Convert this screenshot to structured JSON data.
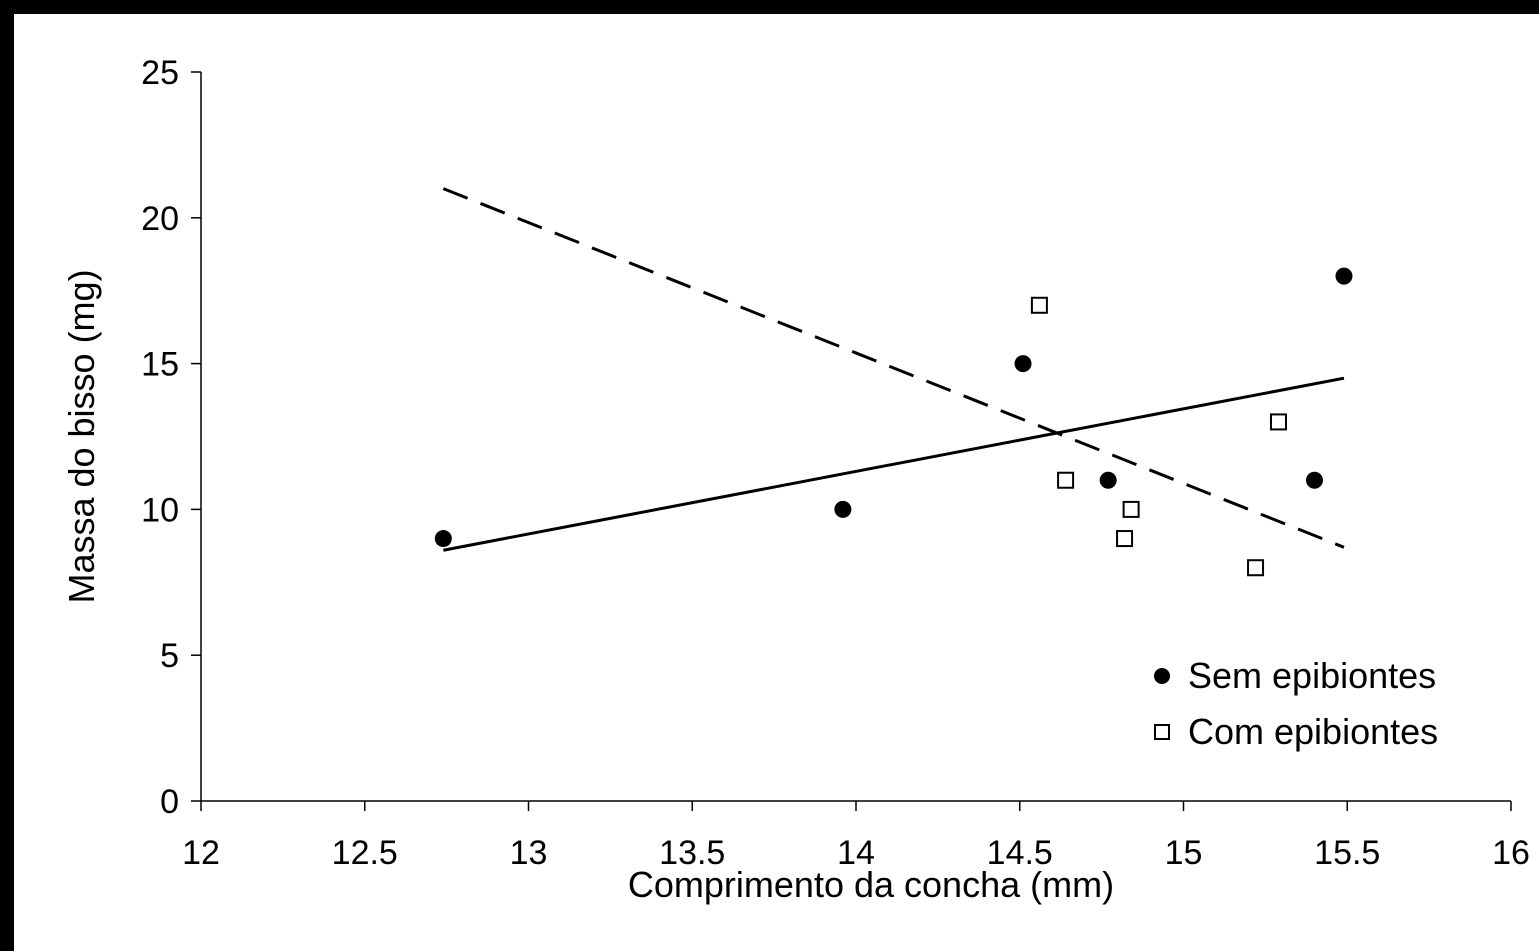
{
  "chart_data": {
    "type": "scatter",
    "title": "",
    "xlabel": "Comprimento da concha (mm)",
    "ylabel": "Massa do bisso (mg)",
    "xlim": [
      12,
      16
    ],
    "ylim": [
      0,
      25
    ],
    "xticks": [
      "12",
      "12.5",
      "13",
      "13.5",
      "14",
      "14.5",
      "15",
      "15.5",
      "16"
    ],
    "yticks": [
      "0",
      "5",
      "10",
      "15",
      "20",
      "25"
    ],
    "grid": false,
    "legend_position": "bottom-right",
    "series": [
      {
        "name": "Sem epibiontes",
        "marker": "filled-circle",
        "color": "#000000",
        "points": [
          {
            "x": 12.74,
            "y": 9
          },
          {
            "x": 13.96,
            "y": 10
          },
          {
            "x": 14.51,
            "y": 15
          },
          {
            "x": 14.77,
            "y": 11
          },
          {
            "x": 15.4,
            "y": 11
          },
          {
            "x": 15.49,
            "y": 18
          }
        ],
        "trendline": {
          "style": "solid",
          "x": [
            12.74,
            15.49
          ],
          "y": [
            8.6,
            14.5
          ]
        }
      },
      {
        "name": "Com epibiontes",
        "marker": "open-square",
        "color": "#000000",
        "points": [
          {
            "x": 14.56,
            "y": 17
          },
          {
            "x": 14.64,
            "y": 11
          },
          {
            "x": 14.82,
            "y": 9
          },
          {
            "x": 14.84,
            "y": 10
          },
          {
            "x": 15.22,
            "y": 8
          },
          {
            "x": 15.29,
            "y": 13
          }
        ],
        "trendline": {
          "style": "dashed",
          "x": [
            12.74,
            15.49
          ],
          "y": [
            21.0,
            8.7
          ]
        }
      }
    ]
  }
}
